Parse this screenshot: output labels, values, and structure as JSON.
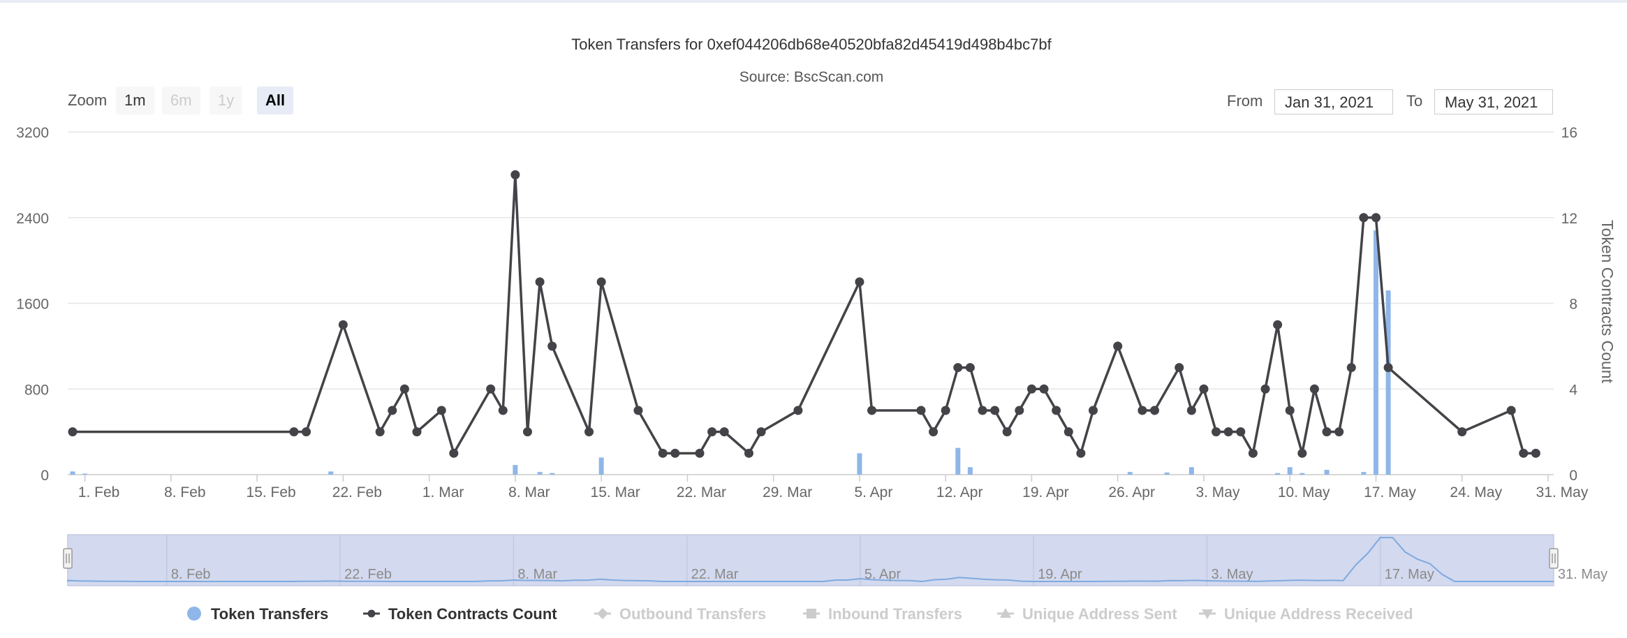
{
  "chart_data": {
    "type": "line",
    "title": "Token Transfers for 0xef044206db68e40520bfa82d45419d498b4bc7bf",
    "subtitle": "Source: BscScan.com",
    "x_range": [
      "2021-01-31",
      "2021-05-31"
    ],
    "x_ticks": [
      "1. Feb",
      "8. Feb",
      "15. Feb",
      "22. Feb",
      "1. Mar",
      "8. Mar",
      "15. Mar",
      "22. Mar",
      "29. Mar",
      "5. Apr",
      "12. Apr",
      "19. Apr",
      "26. Apr",
      "3. May",
      "10. May",
      "17. May",
      "24. May",
      "31. May"
    ],
    "y_left": {
      "ticks": [
        "0",
        "800",
        "1600",
        "2400",
        "3200"
      ],
      "min": 0,
      "max": 3200,
      "label": ""
    },
    "y_right": {
      "ticks": [
        "0",
        "4",
        "8",
        "12",
        "16"
      ],
      "min": 0,
      "max": 16,
      "label": "Token Contracts Count"
    },
    "grid": true,
    "legend_position": "bottom",
    "series": [
      {
        "name": "Token Transfers",
        "type": "column",
        "axis": "left",
        "color": "#8fb6e8",
        "points": [
          [
            "2021-01-31",
            30
          ],
          [
            "2021-02-01",
            10
          ],
          [
            "2021-02-21",
            30
          ],
          [
            "2021-03-08",
            90
          ],
          [
            "2021-03-10",
            25
          ],
          [
            "2021-03-11",
            15
          ],
          [
            "2021-03-15",
            160
          ],
          [
            "2021-04-05",
            200
          ],
          [
            "2021-04-13",
            250
          ],
          [
            "2021-04-14",
            70
          ],
          [
            "2021-04-27",
            25
          ],
          [
            "2021-04-30",
            20
          ],
          [
            "2021-05-02",
            70
          ],
          [
            "2021-05-09",
            15
          ],
          [
            "2021-05-10",
            70
          ],
          [
            "2021-05-11",
            15
          ],
          [
            "2021-05-13",
            45
          ],
          [
            "2021-05-16",
            25
          ],
          [
            "2021-05-17",
            2280
          ],
          [
            "2021-05-18",
            1720
          ]
        ]
      },
      {
        "name": "Token Contracts Count",
        "type": "line",
        "axis": "right",
        "color": "#434348",
        "points": [
          [
            "2021-01-31",
            2
          ],
          [
            "2021-02-18",
            2
          ],
          [
            "2021-02-19",
            2
          ],
          [
            "2021-02-22",
            7
          ],
          [
            "2021-02-25",
            2
          ],
          [
            "2021-02-26",
            3
          ],
          [
            "2021-02-27",
            4
          ],
          [
            "2021-02-28",
            2
          ],
          [
            "2021-03-02",
            3
          ],
          [
            "2021-03-03",
            1
          ],
          [
            "2021-03-06",
            4
          ],
          [
            "2021-03-07",
            3
          ],
          [
            "2021-03-08",
            14
          ],
          [
            "2021-03-09",
            2
          ],
          [
            "2021-03-10",
            9
          ],
          [
            "2021-03-11",
            6
          ],
          [
            "2021-03-14",
            2
          ],
          [
            "2021-03-15",
            9
          ],
          [
            "2021-03-18",
            3
          ],
          [
            "2021-03-20",
            1
          ],
          [
            "2021-03-21",
            1
          ],
          [
            "2021-03-23",
            1
          ],
          [
            "2021-03-24",
            2
          ],
          [
            "2021-03-25",
            2
          ],
          [
            "2021-03-27",
            1
          ],
          [
            "2021-03-28",
            2
          ],
          [
            "2021-03-31",
            3
          ],
          [
            "2021-04-05",
            9
          ],
          [
            "2021-04-06",
            3
          ],
          [
            "2021-04-10",
            3
          ],
          [
            "2021-04-11",
            2
          ],
          [
            "2021-04-12",
            3
          ],
          [
            "2021-04-13",
            5
          ],
          [
            "2021-04-14",
            5
          ],
          [
            "2021-04-15",
            3
          ],
          [
            "2021-04-16",
            3
          ],
          [
            "2021-04-17",
            2
          ],
          [
            "2021-04-18",
            3
          ],
          [
            "2021-04-19",
            4
          ],
          [
            "2021-04-20",
            4
          ],
          [
            "2021-04-21",
            3
          ],
          [
            "2021-04-22",
            2
          ],
          [
            "2021-04-23",
            1
          ],
          [
            "2021-04-24",
            3
          ],
          [
            "2021-04-26",
            6
          ],
          [
            "2021-04-28",
            3
          ],
          [
            "2021-04-29",
            3
          ],
          [
            "2021-05-01",
            5
          ],
          [
            "2021-05-02",
            3
          ],
          [
            "2021-05-03",
            4
          ],
          [
            "2021-05-04",
            2
          ],
          [
            "2021-05-05",
            2
          ],
          [
            "2021-05-06",
            2
          ],
          [
            "2021-05-07",
            1
          ],
          [
            "2021-05-08",
            4
          ],
          [
            "2021-05-09",
            7
          ],
          [
            "2021-05-10",
            3
          ],
          [
            "2021-05-11",
            1
          ],
          [
            "2021-05-12",
            4
          ],
          [
            "2021-05-13",
            2
          ],
          [
            "2021-05-14",
            2
          ],
          [
            "2021-05-15",
            5
          ],
          [
            "2021-05-16",
            12
          ],
          [
            "2021-05-17",
            12
          ],
          [
            "2021-05-18",
            5
          ],
          [
            "2021-05-24",
            2
          ],
          [
            "2021-05-28",
            3
          ],
          [
            "2021-05-29",
            1
          ],
          [
            "2021-05-30",
            1
          ]
        ]
      }
    ],
    "navigator": {
      "x_labels": [
        "8. Feb",
        "22. Feb",
        "8. Mar",
        "22. Mar",
        "5. Apr",
        "19. Apr",
        "3. May",
        "17. May",
        "31. May"
      ]
    }
  },
  "zoom": {
    "label": "Zoom",
    "buttons": [
      {
        "label": "1m",
        "state": "normal"
      },
      {
        "label": "6m",
        "state": "disabled"
      },
      {
        "label": "1y",
        "state": "disabled"
      },
      {
        "label": "All",
        "state": "active"
      }
    ]
  },
  "range": {
    "from_label": "From",
    "from_value": "Jan 31, 2021",
    "to_label": "To",
    "to_value": "May 31, 2021"
  },
  "legend": [
    {
      "label": "Token Transfers",
      "symbol": "circle",
      "enabled": true,
      "color": "#8fb6e8"
    },
    {
      "label": "Token Contracts Count",
      "symbol": "line-circle",
      "enabled": true,
      "color": "#434348"
    },
    {
      "label": "Outbound Transfers",
      "symbol": "diamond",
      "enabled": false,
      "color": "#cccccc"
    },
    {
      "label": "Inbound Transfers",
      "symbol": "square",
      "enabled": false,
      "color": "#cccccc"
    },
    {
      "label": "Unique Address Sent",
      "symbol": "triangle",
      "enabled": false,
      "color": "#cccccc"
    },
    {
      "label": "Unique Address Received",
      "symbol": "triangle-down",
      "enabled": false,
      "color": "#cccccc"
    }
  ]
}
